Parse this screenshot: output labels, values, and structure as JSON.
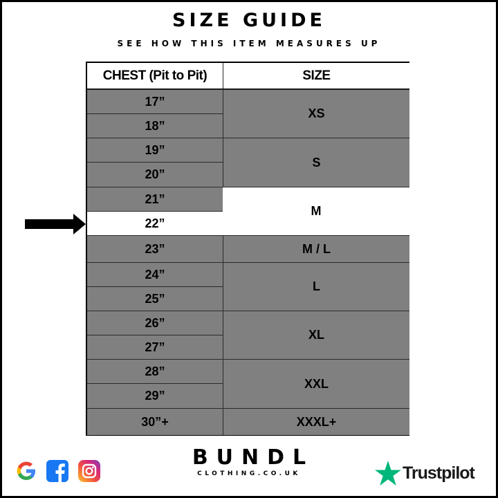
{
  "title": "SIZE GUIDE",
  "subtitle": "SEE HOW THIS ITEM MEASURES UP",
  "table": {
    "headers": [
      "CHEST (Pit to Pit)",
      "SIZE"
    ],
    "chest": [
      "17”",
      "18”",
      "19”",
      "20”",
      "21”",
      "22”",
      "23”",
      "24”",
      "25”",
      "26”",
      "27”",
      "28”",
      "29”",
      "30”+"
    ],
    "sizes": [
      "XS",
      "S",
      "M",
      "M / L",
      "L",
      "XL",
      "XXL",
      "XXXL+"
    ],
    "highlighted_chest": "22”",
    "highlighted_size": "M"
  },
  "colors": {
    "row_fill": "#808080",
    "highlight": "#ffffff",
    "trustpilot_green": "#00b67a"
  },
  "footer": {
    "brand": "BUNDL",
    "domain": "CLOTHING.CO.UK",
    "trustpilot": "Trustpilot",
    "icons": [
      "google-icon",
      "facebook-icon",
      "instagram-icon",
      "trustpilot-star-icon"
    ]
  }
}
